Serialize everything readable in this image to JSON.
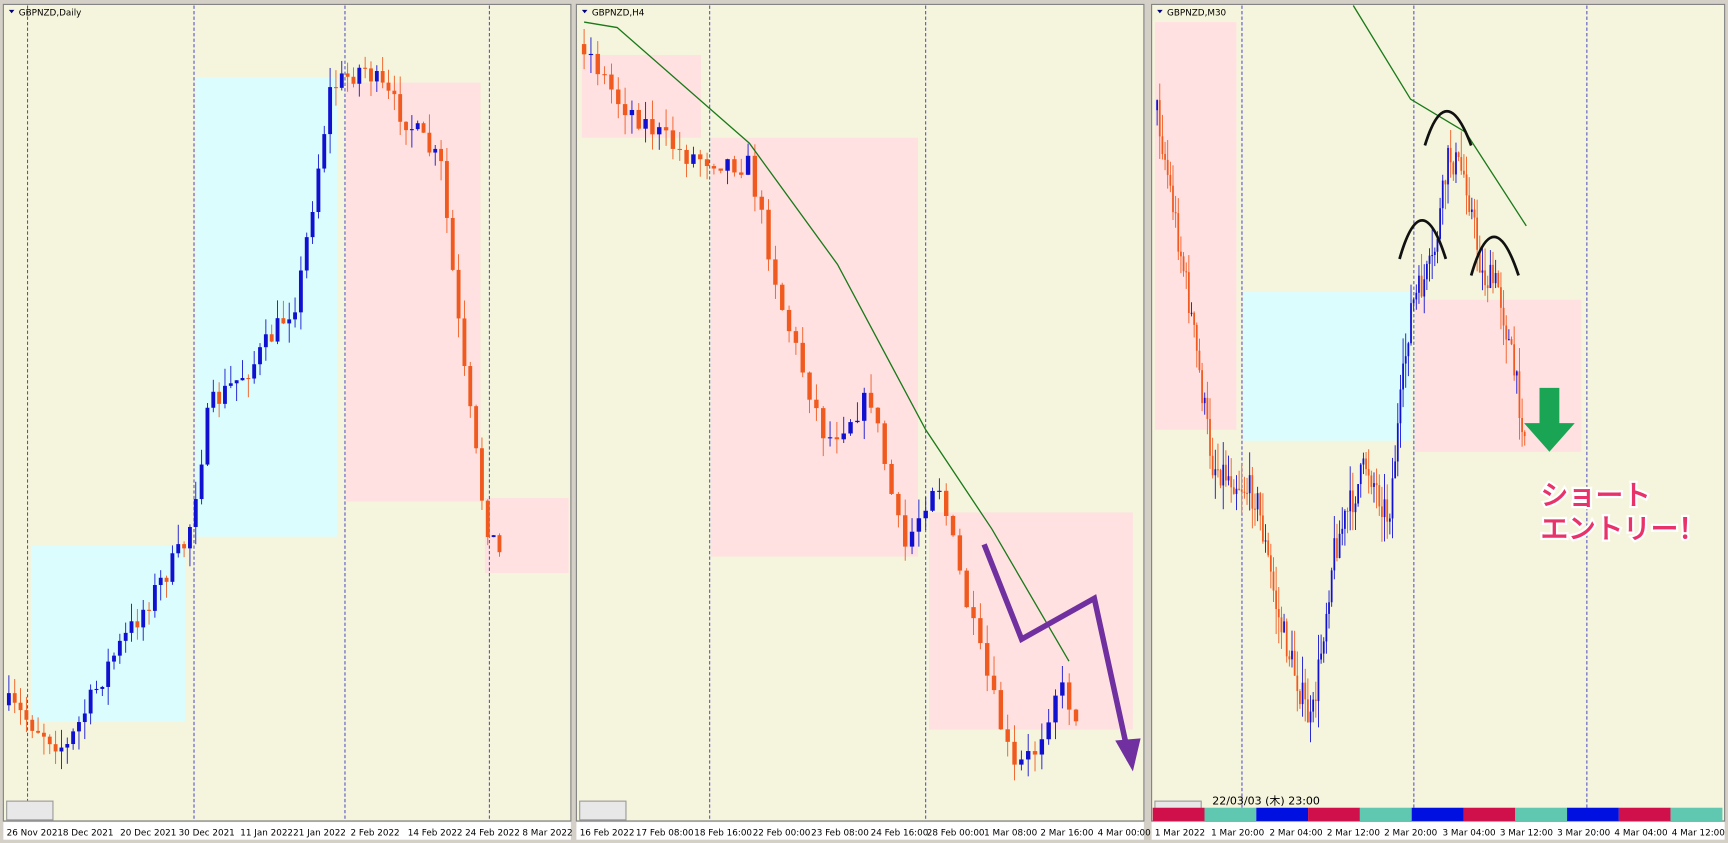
{
  "panels": [
    {
      "title": "GBPNZD,Daily",
      "x_labels": [
        "26 Nov 2021",
        "8 Dec 2021",
        "20 Dec 2021",
        "30 Dec 2021",
        "11 Jan 2022",
        "21 Jan 2022",
        "2 Feb 2022",
        "14 Feb 2022",
        "24 Feb 2022",
        "8 Mar 2022"
      ]
    },
    {
      "title": "GBPNZD,H4",
      "x_labels": [
        "16 Feb 2022",
        "17 Feb 08:00",
        "18 Feb 16:00",
        "22 Feb 00:00",
        "23 Feb 08:00",
        "24 Feb 16:00",
        "28 Feb 00:00",
        "1 Mar 08:00",
        "2 Mar 16:00",
        "4 Mar 00:00"
      ]
    },
    {
      "title": "GBPNZD,M30",
      "x_labels": [
        "1 Mar 2022",
        "1 Mar 20:00",
        "2 Mar 04:00",
        "2 Mar 12:00",
        "2 Mar 20:00",
        "3 Mar 04:00",
        "3 Mar 12:00",
        "3 Mar 20:00",
        "4 Mar 04:00",
        "4 Mar 12:00"
      ],
      "timestamp": "22/03/03 (木) 23:00"
    }
  ],
  "annotation": {
    "lines": [
      "ショート",
      "エントリー！"
    ]
  }
}
